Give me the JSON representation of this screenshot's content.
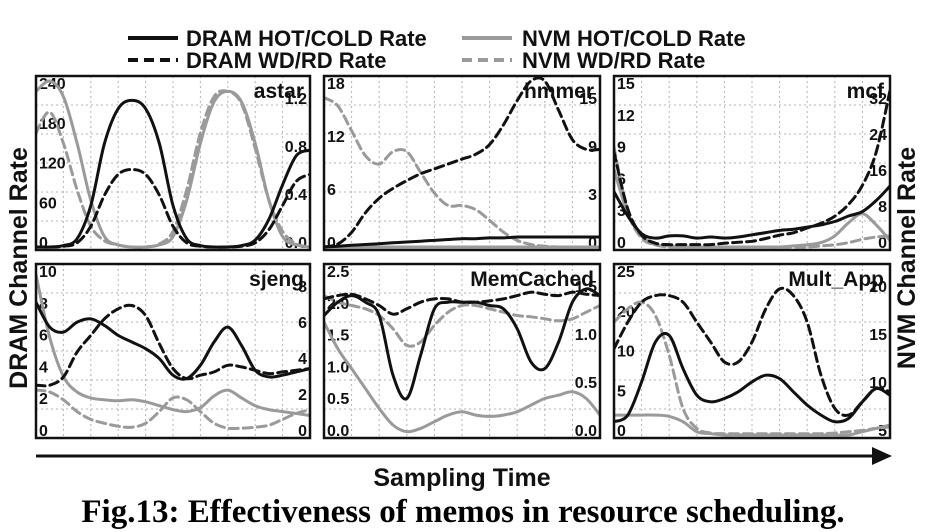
{
  "legend": {
    "dram_hot": "DRAM HOT/COLD Rate",
    "nvm_hot": "NVM HOT/COLD Rate",
    "dram_wd": "DRAM WD/RD Rate",
    "nvm_wd": "NVM WD/RD Rate"
  },
  "ylabel_left": "DRAM Channel Rate",
  "ylabel_right": "NVM Channel Rate",
  "xlabel": "Sampling Time",
  "caption": "Fig.13: Effectiveness of memos in resource scheduling.",
  "colors": {
    "dram": "#111111",
    "nvm": "#9a9a9a"
  },
  "chart_data": [
    {
      "type": "line",
      "title": "astar",
      "left_ticks": [
        "240",
        "180",
        "120",
        "60",
        "0"
      ],
      "left_ylim": [
        0,
        240
      ],
      "right_ticks": [
        "1.2",
        "0.8",
        "0.4",
        "0.0"
      ],
      "right_ylim": [
        0,
        1.6
      ],
      "x": [
        0,
        1,
        2,
        3,
        4,
        5,
        6,
        7,
        8,
        9,
        10,
        11,
        12,
        13,
        14,
        15,
        16,
        17,
        18,
        19,
        20
      ],
      "series": [
        {
          "name": "DRAM HOT/COLD Rate",
          "axis": "left",
          "values": [
            0,
            0,
            2,
            12,
            60,
            150,
            200,
            212,
            200,
            150,
            60,
            12,
            2,
            0,
            0,
            2,
            10,
            40,
            90,
            132,
            140
          ]
        },
        {
          "name": "DRAM WD/RD Rate",
          "axis": "left",
          "values": [
            0,
            0,
            1,
            6,
            30,
            75,
            105,
            112,
            105,
            75,
            30,
            6,
            1,
            0,
            0,
            1,
            6,
            25,
            60,
            95,
            105
          ]
        },
        {
          "name": "NVM HOT/COLD Rate",
          "axis": "right",
          "values": [
            1.5,
            1.6,
            1.45,
            1.0,
            0.45,
            0.1,
            0.02,
            0.0,
            0.0,
            0.02,
            0.1,
            0.45,
            1.0,
            1.4,
            1.5,
            1.4,
            1.0,
            0.45,
            0.1,
            0.02,
            0.0
          ]
        },
        {
          "name": "NVM WD/RD Rate",
          "axis": "right",
          "values": [
            1.1,
            1.3,
            1.0,
            0.55,
            0.2,
            0.06,
            0.02,
            0.0,
            0.0,
            0.03,
            0.15,
            0.55,
            1.1,
            1.45,
            1.5,
            1.38,
            0.95,
            0.45,
            0.15,
            0.03,
            0.0
          ]
        }
      ]
    },
    {
      "type": "line",
      "title": "hmmer",
      "left_ticks": [
        "18",
        "12",
        "6",
        "0"
      ],
      "left_ylim": [
        0,
        20
      ],
      "right_ticks": [
        "15",
        "9",
        "3",
        "0"
      ],
      "right_ylim": [
        0,
        17
      ],
      "x": [
        0,
        1,
        2,
        3,
        4,
        5,
        6,
        7,
        8,
        9,
        10,
        11,
        12,
        13,
        14,
        15,
        16,
        17,
        18,
        19,
        20
      ],
      "series": [
        {
          "name": "DRAM HOT/COLD Rate",
          "axis": "left",
          "values": [
            0,
            0.1,
            0.2,
            0.3,
            0.4,
            0.5,
            0.6,
            0.7,
            0.8,
            0.9,
            1.0,
            1.0,
            1.1,
            1.1,
            1.2,
            1.2,
            1.2,
            1.2,
            1.2,
            1.2,
            1.2
          ]
        },
        {
          "name": "DRAM WD/RD Rate",
          "axis": "right",
          "values": [
            0,
            0.3,
            1.5,
            3.5,
            5,
            6,
            6.8,
            7.5,
            8,
            8.5,
            9,
            9.5,
            10.5,
            12.5,
            15,
            17,
            17,
            14,
            11,
            10,
            10
          ]
        },
        {
          "name": "NVM HOT/COLD Rate",
          "axis": "left",
          "values": [
            0,
            0,
            0,
            0,
            0,
            0,
            0,
            0,
            0,
            0,
            0,
            0,
            0,
            0,
            0,
            0,
            0,
            0,
            0,
            0,
            0
          ]
        },
        {
          "name": "NVM WD/RD Rate",
          "axis": "left",
          "values": [
            18,
            17,
            14,
            11,
            10,
            11.5,
            11.5,
            9,
            6.5,
            5,
            5,
            4.5,
            3.2,
            1.8,
            0.8,
            0.3,
            0.1,
            0,
            0,
            0,
            0
          ]
        }
      ]
    },
    {
      "type": "line",
      "title": "mcf",
      "left_ticks": [
        "15",
        "12",
        "9",
        "6",
        "3",
        "0"
      ],
      "left_ylim": [
        0,
        15
      ],
      "right_ticks": [
        "32",
        "24",
        "16",
        "8",
        "0"
      ],
      "right_ylim": [
        0,
        35
      ],
      "x": [
        0,
        1,
        2,
        3,
        4,
        5,
        6,
        7,
        8,
        9,
        10,
        11,
        12,
        13,
        14,
        15,
        16,
        17,
        18,
        19,
        20
      ],
      "series": [
        {
          "name": "DRAM HOT/COLD Rate",
          "axis": "left",
          "values": [
            5,
            2.8,
            1.2,
            0.8,
            1.0,
            1.0,
            0.8,
            0.9,
            0.8,
            0.9,
            1.1,
            1.3,
            1.5,
            1.6,
            1.8,
            2.0,
            2.3,
            2.8,
            3.2,
            4.2,
            5.5
          ]
        },
        {
          "name": "DRAM WD/RD Rate",
          "axis": "right",
          "values": [
            20,
            8,
            2.5,
            0.8,
            0.5,
            0.5,
            0.5,
            0.5,
            0.8,
            1.0,
            1.2,
            1.8,
            2.5,
            3.0,
            4.0,
            5.0,
            6.5,
            9,
            13,
            20,
            33
          ]
        },
        {
          "name": "NVM HOT/COLD Rate",
          "axis": "left",
          "values": [
            7,
            3,
            1.0,
            0.2,
            0.1,
            0,
            0,
            0,
            0,
            0,
            0,
            0,
            0,
            0.1,
            0.2,
            0.4,
            1.0,
            2.2,
            3.0,
            2.0,
            0.6
          ]
        },
        {
          "name": "NVM WD/RD Rate",
          "axis": "left",
          "values": [
            9,
            3.2,
            0.8,
            0.2,
            0,
            0,
            0,
            0,
            0,
            0,
            0,
            0,
            0,
            0,
            0,
            0.1,
            0.2,
            0.4,
            0.7,
            0.9,
            1.0
          ]
        }
      ]
    },
    {
      "type": "line",
      "title": "sjeng",
      "left_ticks": [
        "10",
        "8",
        "6",
        "4",
        "2",
        "0"
      ],
      "left_ylim": [
        0,
        10
      ],
      "right_ticks": [
        "8",
        "6",
        "4",
        "2",
        "0"
      ],
      "right_ylim": [
        0,
        8.5
      ],
      "x": [
        0,
        1,
        2,
        3,
        4,
        5,
        6,
        7,
        8,
        9,
        10,
        11,
        12,
        13,
        14,
        15,
        16,
        17,
        18,
        19,
        20
      ],
      "series": [
        {
          "name": "DRAM HOT/COLD Rate",
          "axis": "left",
          "values": [
            8,
            6.5,
            6.2,
            6.8,
            7,
            6.6,
            6.0,
            5.6,
            5.2,
            4.6,
            3.6,
            3.4,
            4.2,
            5.6,
            6.5,
            5.4,
            3.9,
            3.5,
            3.6,
            3.8,
            4.0
          ]
        },
        {
          "name": "DRAM WD/RD Rate",
          "axis": "left",
          "values": [
            3,
            3,
            3.5,
            5.0,
            6.0,
            7.0,
            7.6,
            7.8,
            7.2,
            5.5,
            4.0,
            3.4,
            3.6,
            3.8,
            4.2,
            4.1,
            3.9,
            3.7,
            3.8,
            3.9,
            4.0
          ]
        },
        {
          "name": "NVM HOT/COLD Rate",
          "axis": "right",
          "values": [
            8.2,
            5.0,
            3.0,
            2.2,
            1.9,
            1.8,
            1.75,
            1.8,
            1.7,
            1.5,
            1.3,
            1.2,
            1.4,
            2.0,
            2.3,
            1.9,
            1.5,
            1.3,
            1.2,
            1.1,
            1.0
          ]
        },
        {
          "name": "NVM WD/RD Rate",
          "axis": "right",
          "values": [
            2.3,
            2.2,
            1.8,
            1.2,
            0.8,
            0.6,
            0.45,
            0.4,
            0.6,
            1.2,
            1.9,
            1.8,
            1.2,
            0.6,
            0.35,
            0.35,
            0.4,
            0.5,
            0.8,
            1.1,
            1.3
          ]
        }
      ]
    },
    {
      "type": "line",
      "title": "MemCached",
      "left_ticks": [
        "2.5",
        "2.0",
        "1.5",
        "1.0",
        "0.5",
        "0.0"
      ],
      "left_ylim": [
        0,
        2.5
      ],
      "right_ticks": [
        "1.5",
        "1.0",
        "0.5",
        "0.0"
      ],
      "right_ylim": [
        0,
        2.5
      ],
      "x": [
        0,
        1,
        2,
        3,
        4,
        5,
        6,
        7,
        8,
        9,
        10,
        11,
        12,
        13,
        14,
        15,
        16,
        17,
        18,
        19,
        20
      ],
      "series": [
        {
          "name": "DRAM HOT/COLD Rate",
          "axis": "left",
          "values": [
            1.8,
            2.0,
            2.1,
            2.0,
            1.8,
            0.9,
            0.55,
            1.2,
            1.9,
            2.0,
            2.0,
            2.0,
            1.95,
            1.9,
            1.6,
            1.1,
            1.0,
            1.4,
            2.0,
            2.2,
            2.1
          ]
        },
        {
          "name": "DRAM WD/RD Rate",
          "axis": "left",
          "values": [
            2.05,
            2.1,
            2.12,
            2.05,
            1.95,
            1.82,
            1.9,
            2.0,
            2.05,
            2.05,
            2.0,
            2.0,
            2.02,
            2.05,
            2.1,
            2.15,
            2.12,
            2.1,
            2.15,
            2.12,
            2.1
          ]
        },
        {
          "name": "NVM HOT/COLD Rate",
          "axis": "left",
          "values": [
            1.7,
            1.3,
            1.0,
            0.7,
            0.4,
            0.15,
            0.05,
            0.1,
            0.2,
            0.3,
            0.35,
            0.3,
            0.28,
            0.3,
            0.35,
            0.45,
            0.55,
            0.6,
            0.65,
            0.55,
            0.3
          ]
        },
        {
          "name": "NVM WD/RD Rate",
          "axis": "left",
          "values": [
            2.1,
            2.0,
            1.95,
            1.9,
            1.8,
            1.6,
            1.35,
            1.4,
            1.65,
            1.85,
            1.95,
            1.95,
            1.9,
            1.85,
            1.8,
            1.78,
            1.75,
            1.72,
            1.75,
            1.85,
            1.95
          ]
        }
      ]
    },
    {
      "type": "line",
      "title": "Mult_App",
      "left_ticks": [
        "25",
        "20",
        "10",
        "5",
        "0"
      ],
      "left_ylim": [
        0,
        25
      ],
      "right_ticks": [
        "20",
        "15",
        "10",
        "5"
      ],
      "right_ylim": [
        0,
        25
      ],
      "x": [
        0,
        1,
        2,
        3,
        4,
        5,
        6,
        7,
        8,
        9,
        10,
        11,
        12,
        13,
        14,
        15,
        16,
        17,
        18,
        19,
        20
      ],
      "series": [
        {
          "name": "DRAM HOT/COLD Rate",
          "axis": "left",
          "values": [
            2,
            3,
            8,
            14,
            15,
            10,
            6,
            5,
            5.5,
            6.5,
            8,
            9,
            8.5,
            6.5,
            4.5,
            3,
            2,
            2.5,
            5,
            7,
            6
          ]
        },
        {
          "name": "DRAM WD/RD Rate",
          "axis": "left",
          "values": [
            13,
            17,
            20,
            21,
            21,
            20,
            17,
            14,
            11,
            11,
            14,
            19,
            22,
            21,
            17,
            9,
            4,
            3,
            5,
            7,
            6.5
          ]
        },
        {
          "name": "NVM HOT/COLD Rate",
          "axis": "left",
          "values": [
            3,
            3,
            3,
            3,
            2.8,
            2.0,
            0.5,
            0.2,
            0,
            0,
            0,
            0,
            0,
            0,
            0,
            0,
            0,
            0,
            0.5,
            1.0,
            1.5
          ]
        },
        {
          "name": "NVM WD/RD Rate",
          "axis": "left",
          "values": [
            17,
            19,
            20,
            18,
            12,
            4,
            1,
            0.3,
            0.2,
            0.2,
            0.2,
            0.2,
            0.2,
            0.2,
            0.2,
            0.2,
            0.3,
            0.5,
            0.7,
            1.0,
            1.2
          ]
        }
      ]
    }
  ]
}
